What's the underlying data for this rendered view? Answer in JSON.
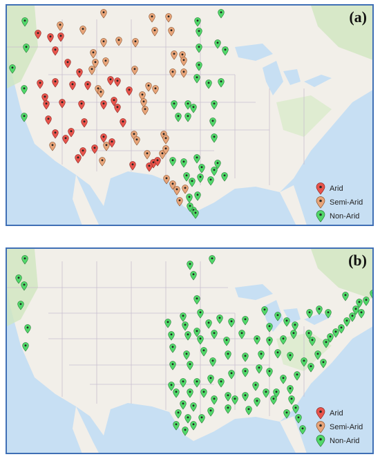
{
  "panels": [
    {
      "id": "a",
      "label": "(a)"
    },
    {
      "id": "b",
      "label": "(b)"
    }
  ],
  "legend": [
    {
      "label": "Arid",
      "color": "#e8544c"
    },
    {
      "label": "Semi-Arid",
      "color": "#e8a57a"
    },
    {
      "label": "Non-Arid",
      "color": "#52d86a"
    }
  ],
  "colors": {
    "water": "#c7dff3",
    "land": "#f2efe9",
    "vegetation": "#cfe6bf",
    "border": "#3f6fb5"
  }
}
